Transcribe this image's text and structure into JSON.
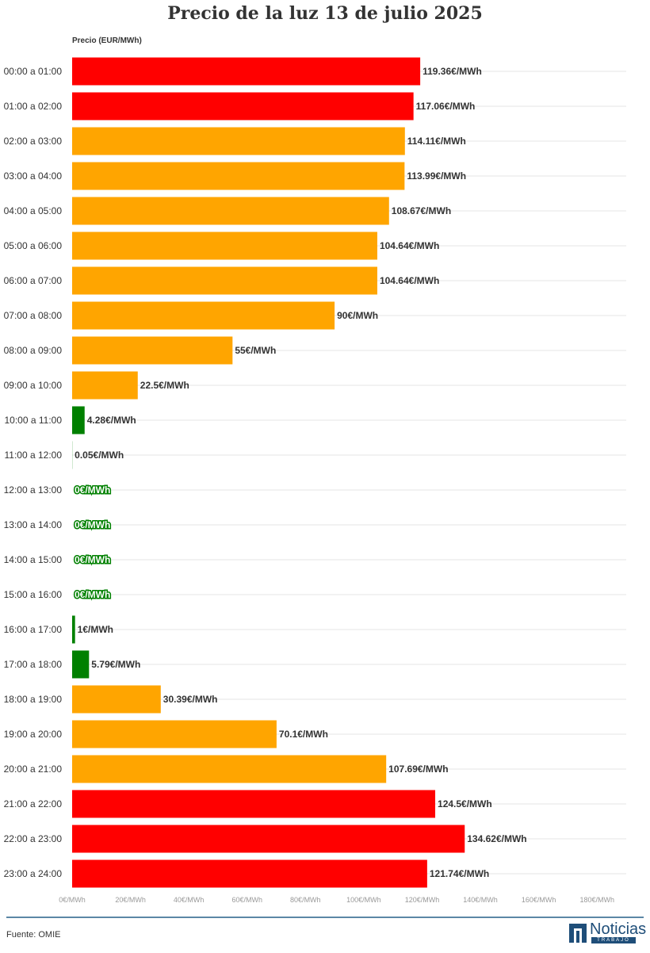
{
  "chart_data": {
    "type": "bar",
    "orientation": "horizontal",
    "title": "Precio de la luz 13 de julio 2025",
    "ylabel": "Precio (EUR/MWh)",
    "categories": [
      "00:00 a 01:00",
      "01:00 a 02:00",
      "02:00 a 03:00",
      "03:00 a 04:00",
      "04:00 a 05:00",
      "05:00 a 06:00",
      "06:00 a 07:00",
      "07:00 a 08:00",
      "08:00 a 09:00",
      "09:00 a 10:00",
      "10:00 a 11:00",
      "11:00 a 12:00",
      "12:00 a 13:00",
      "13:00 a 14:00",
      "14:00 a 15:00",
      "15:00 a 16:00",
      "16:00 a 17:00",
      "17:00 a 18:00",
      "18:00 a 19:00",
      "19:00 a 20:00",
      "20:00 a 21:00",
      "21:00 a 22:00",
      "22:00 a 23:00",
      "23:00 a 24:00"
    ],
    "values": [
      119.36,
      117.06,
      114.11,
      113.99,
      108.67,
      104.64,
      104.64,
      90,
      55,
      22.5,
      4.28,
      0.05,
      0,
      0,
      0,
      0,
      1,
      5.79,
      30.39,
      70.1,
      107.69,
      124.5,
      134.62,
      121.74
    ],
    "value_labels": [
      "119.36€/MWh",
      "117.06€/MWh",
      "114.11€/MWh",
      "113.99€/MWh",
      "108.67€/MWh",
      "104.64€/MWh",
      "104.64€/MWh",
      "90€/MWh",
      "55€/MWh",
      "22.5€/MWh",
      "4.28€/MWh",
      "0.05€/MWh",
      "0€/MWh",
      "0€/MWh",
      "0€/MWh",
      "0€/MWh",
      "1€/MWh",
      "5.79€/MWh",
      "30.39€/MWh",
      "70.1€/MWh",
      "107.69€/MWh",
      "124.5€/MWh",
      "134.62€/MWh",
      "121.74€/MWh"
    ],
    "bar_colors": [
      "#ff0000",
      "#ff0000",
      "#ffa500",
      "#ffa500",
      "#ffa500",
      "#ffa500",
      "#ffa500",
      "#ffa500",
      "#ffa500",
      "#ffa500",
      "#008000",
      "#008000",
      "#008000",
      "#008000",
      "#008000",
      "#008000",
      "#008000",
      "#008000",
      "#ffa500",
      "#ffa500",
      "#ffa500",
      "#ff0000",
      "#ff0000",
      "#ff0000"
    ],
    "xlim": [
      0,
      190
    ],
    "xticks": [
      0,
      20,
      40,
      60,
      80,
      100,
      120,
      140,
      160,
      180
    ],
    "xtick_labels": [
      "0€/MWh",
      "20€/MWh",
      "40€/MWh",
      "60€/MWh",
      "80€/MWh",
      "100€/MWh",
      "120€/MWh",
      "140€/MWh",
      "160€/MWh",
      "180€/MWh"
    ],
    "grid": true
  },
  "footer": {
    "source": "Fuente: OMIE",
    "logo_text": "Noticias",
    "logo_sub": "TRABAJO"
  }
}
